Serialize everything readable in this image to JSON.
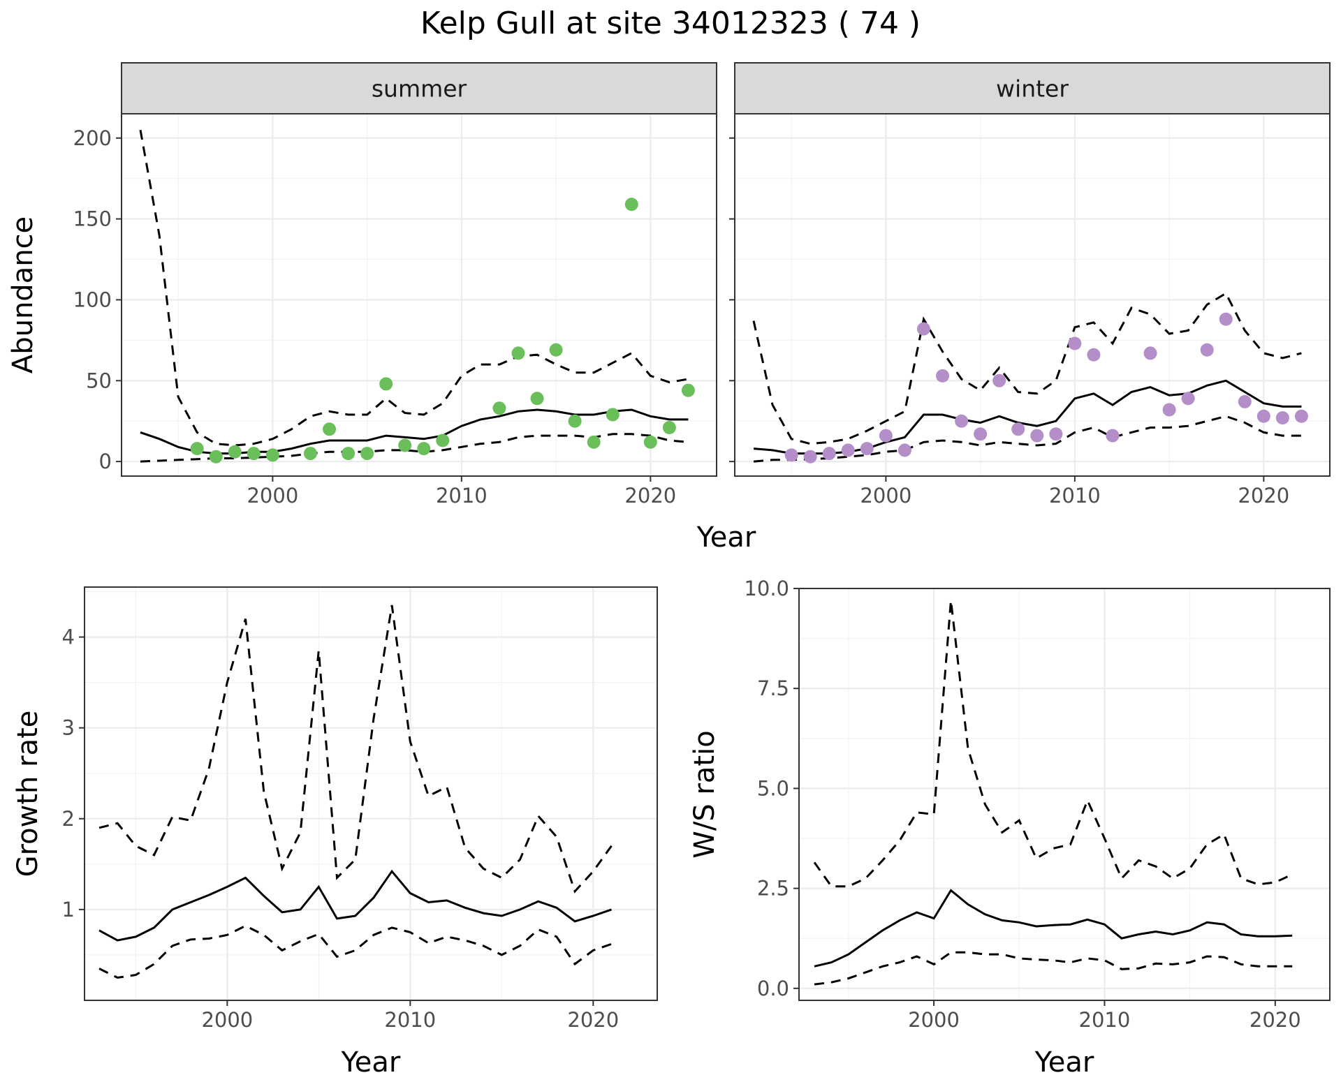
{
  "figure": {
    "title": "Kelp Gull at site 34012323 ( 74 )",
    "top_xlabel": "Year"
  },
  "colors": {
    "summer_points": "#6abf5a",
    "winter_points": "#b48ec8",
    "lines": "#000000",
    "strip_background": "#d9d9d9"
  },
  "chart_data": [
    {
      "type": "line",
      "panel": "summer",
      "strip_label": "summer",
      "ylabel": "Abundance",
      "xlabel": "Year",
      "xlim": [
        1992,
        2023.5
      ],
      "ylim": [
        -9,
        215
      ],
      "x_ticks": [
        2000,
        2010,
        2020
      ],
      "y_ticks": [
        0,
        50,
        100,
        150,
        200
      ],
      "grid": true,
      "x": [
        1993,
        1994,
        1995,
        1996,
        1997,
        1998,
        1999,
        2000,
        2001,
        2002,
        2003,
        2004,
        2005,
        2006,
        2007,
        2008,
        2009,
        2010,
        2011,
        2012,
        2013,
        2014,
        2015,
        2016,
        2017,
        2018,
        2019,
        2020,
        2021,
        2022
      ],
      "series": [
        {
          "role": "median",
          "style": "solid",
          "values": [
            18,
            14,
            9,
            6,
            5,
            5,
            6,
            6,
            8,
            11,
            13,
            13,
            13,
            16,
            15,
            14,
            16,
            22,
            26,
            28,
            31,
            32,
            31,
            29,
            29,
            31,
            32,
            28,
            26,
            26
          ]
        },
        {
          "role": "upper",
          "style": "dashed",
          "values": [
            205,
            140,
            40,
            18,
            11,
            10,
            11,
            14,
            20,
            28,
            31,
            29,
            29,
            39,
            30,
            29,
            36,
            53,
            60,
            60,
            65,
            66,
            60,
            55,
            55,
            61,
            67,
            53,
            49,
            51
          ]
        },
        {
          "role": "lower",
          "style": "dashed",
          "values": [
            0,
            0.5,
            1,
            1.5,
            2,
            2,
            2.5,
            3,
            3.5,
            5,
            6,
            6,
            6,
            7,
            7,
            6,
            7,
            9,
            11,
            12,
            15,
            16,
            16,
            16,
            15,
            17,
            17,
            16,
            13,
            12
          ]
        }
      ],
      "points": {
        "x": [
          1996,
          1997,
          1998,
          1999,
          2000,
          2002,
          2003,
          2004,
          2005,
          2006,
          2007,
          2008,
          2009,
          2012,
          2013,
          2014,
          2015,
          2016,
          2017,
          2018,
          2019,
          2020,
          2021,
          2022
        ],
        "y": [
          8,
          3,
          6,
          5,
          4,
          5,
          20,
          5,
          5,
          48,
          10,
          8,
          13,
          33,
          67,
          39,
          69,
          25,
          12,
          29,
          159,
          12,
          21,
          44
        ]
      }
    },
    {
      "type": "line",
      "panel": "winter",
      "strip_label": "winter",
      "xlim": [
        1992,
        2023.5
      ],
      "ylim": [
        -9,
        215
      ],
      "x_ticks": [
        2000,
        2010,
        2020
      ],
      "grid": true,
      "x": [
        1993,
        1994,
        1995,
        1996,
        1997,
        1998,
        1999,
        2000,
        2001,
        2002,
        2003,
        2004,
        2005,
        2006,
        2007,
        2008,
        2009,
        2010,
        2011,
        2012,
        2013,
        2014,
        2015,
        2016,
        2017,
        2018,
        2019,
        2020,
        2021,
        2022
      ],
      "series": [
        {
          "role": "median",
          "style": "solid",
          "values": [
            8,
            7,
            5,
            5,
            5,
            6,
            8,
            12,
            15,
            29,
            29,
            26,
            24,
            28,
            24,
            22,
            25,
            39,
            42,
            35,
            43,
            46,
            41,
            42,
            47,
            50,
            43,
            36,
            34,
            34
          ]
        },
        {
          "role": "upper",
          "style": "dashed",
          "values": [
            87,
            35,
            14,
            11,
            12,
            14,
            19,
            25,
            31,
            88,
            68,
            51,
            44,
            58,
            43,
            42,
            50,
            83,
            86,
            73,
            95,
            91,
            79,
            81,
            97,
            104,
            81,
            67,
            64,
            67
          ]
        },
        {
          "role": "lower",
          "style": "dashed",
          "values": [
            0,
            1,
            1,
            1.5,
            2,
            3,
            4,
            6,
            7,
            12,
            13,
            12,
            10,
            12,
            11,
            10,
            11,
            18,
            21,
            15,
            18,
            21,
            21,
            22,
            25,
            28,
            24,
            18,
            16,
            16
          ]
        }
      ],
      "points": {
        "x": [
          1995,
          1996,
          1997,
          1998,
          1999,
          2000,
          2001,
          2002,
          2003,
          2004,
          2005,
          2006,
          2007,
          2008,
          2009,
          2010,
          2011,
          2012,
          2014,
          2015,
          2016,
          2017,
          2018,
          2019,
          2020,
          2021,
          2022
        ],
        "y": [
          4,
          3,
          5,
          7,
          8,
          16,
          7,
          82,
          53,
          25,
          17,
          50,
          20,
          16,
          17,
          73,
          66,
          16,
          67,
          32,
          39,
          69,
          88,
          37,
          28,
          27,
          28
        ]
      }
    },
    {
      "type": "line",
      "panel": "growth",
      "ylabel": "Growth rate",
      "xlabel": "Year",
      "xlim": [
        1992.2,
        2023.5
      ],
      "ylim": [
        0.0,
        4.55
      ],
      "x_ticks": [
        2000,
        2010,
        2020
      ],
      "y_ticks": [
        1,
        2,
        3,
        4
      ],
      "grid": true,
      "x": [
        1993,
        1994,
        1995,
        1996,
        1997,
        1998,
        1999,
        2000,
        2001,
        2002,
        2003,
        2004,
        2005,
        2006,
        2007,
        2008,
        2009,
        2010,
        2011,
        2012,
        2013,
        2014,
        2015,
        2016,
        2017,
        2018,
        2019,
        2020,
        2021
      ],
      "series": [
        {
          "role": "median",
          "style": "solid",
          "values": [
            0.77,
            0.66,
            0.7,
            0.8,
            1.0,
            1.08,
            1.16,
            1.25,
            1.35,
            1.15,
            0.97,
            1.0,
            1.25,
            0.9,
            0.93,
            1.13,
            1.42,
            1.18,
            1.08,
            1.1,
            1.02,
            0.96,
            0.93,
            1.0,
            1.09,
            1.02,
            0.87,
            0.93,
            1.0
          ]
        },
        {
          "role": "upper",
          "style": "dashed",
          "values": [
            1.9,
            1.95,
            1.7,
            1.6,
            2.02,
            1.98,
            2.55,
            3.5,
            4.2,
            2.3,
            1.45,
            1.85,
            3.85,
            1.35,
            1.55,
            3.1,
            4.35,
            2.85,
            2.25,
            2.35,
            1.68,
            1.45,
            1.35,
            1.55,
            2.03,
            1.8,
            1.2,
            1.42,
            1.7
          ]
        },
        {
          "role": "lower",
          "style": "dashed",
          "values": [
            0.35,
            0.25,
            0.28,
            0.4,
            0.6,
            0.67,
            0.68,
            0.72,
            0.82,
            0.72,
            0.55,
            0.65,
            0.73,
            0.48,
            0.55,
            0.72,
            0.8,
            0.75,
            0.63,
            0.7,
            0.66,
            0.6,
            0.5,
            0.6,
            0.78,
            0.7,
            0.4,
            0.55,
            0.62
          ]
        }
      ]
    },
    {
      "type": "line",
      "panel": "ratio",
      "ylabel": "W/S ratio",
      "xlabel": "Year",
      "xlim": [
        1992.1,
        2023.2
      ],
      "ylim": [
        -0.3,
        10.0
      ],
      "x_ticks": [
        2000,
        2010,
        2020
      ],
      "y_ticks": [
        0.0,
        2.5,
        5.0,
        7.5,
        10.0
      ],
      "y_tick_labels": [
        "0.0",
        "2.5",
        "5.0",
        "7.5",
        "10.0"
      ],
      "grid": true,
      "x": [
        1993,
        1994,
        1995,
        1996,
        1997,
        1998,
        1999,
        2000,
        2001,
        2002,
        2003,
        2004,
        2005,
        2006,
        2007,
        2008,
        2009,
        2010,
        2011,
        2012,
        2013,
        2014,
        2015,
        2016,
        2017,
        2018,
        2019,
        2020,
        2021
      ],
      "series": [
        {
          "role": "median",
          "style": "solid",
          "values": [
            0.55,
            0.65,
            0.85,
            1.15,
            1.45,
            1.7,
            1.9,
            1.75,
            2.45,
            2.1,
            1.85,
            1.7,
            1.65,
            1.55,
            1.58,
            1.6,
            1.72,
            1.6,
            1.25,
            1.35,
            1.42,
            1.35,
            1.45,
            1.65,
            1.6,
            1.35,
            1.3,
            1.3,
            1.32
          ]
        },
        {
          "role": "upper",
          "style": "dashed",
          "values": [
            3.15,
            2.55,
            2.55,
            2.75,
            3.2,
            3.7,
            4.4,
            4.35,
            9.7,
            6.0,
            4.6,
            3.9,
            4.2,
            3.25,
            3.5,
            3.6,
            4.7,
            3.75,
            2.75,
            3.2,
            3.05,
            2.75,
            3.0,
            3.6,
            3.85,
            2.75,
            2.6,
            2.65,
            2.85
          ]
        },
        {
          "role": "lower",
          "style": "dashed",
          "values": [
            0.1,
            0.15,
            0.25,
            0.4,
            0.55,
            0.65,
            0.8,
            0.6,
            0.9,
            0.9,
            0.85,
            0.85,
            0.75,
            0.72,
            0.7,
            0.65,
            0.75,
            0.7,
            0.48,
            0.5,
            0.62,
            0.6,
            0.65,
            0.8,
            0.78,
            0.6,
            0.55,
            0.55,
            0.55
          ]
        }
      ]
    }
  ]
}
